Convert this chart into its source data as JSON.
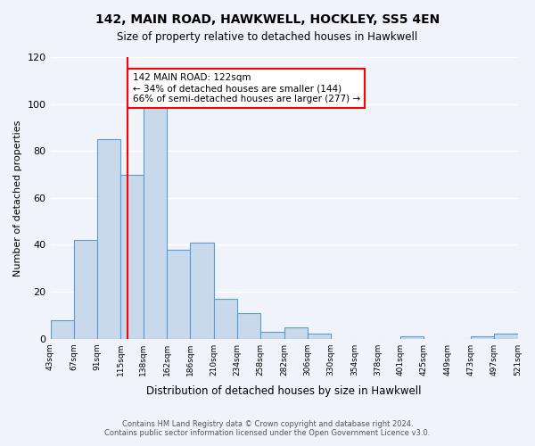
{
  "title": "142, MAIN ROAD, HAWKWELL, HOCKLEY, SS5 4EN",
  "subtitle": "Size of property relative to detached houses in Hawkwell",
  "xlabel": "Distribution of detached houses by size in Hawkwell",
  "ylabel": "Number of detached properties",
  "bar_edges": [
    43,
    67,
    91,
    115,
    138,
    162,
    186,
    210,
    234,
    258,
    282,
    306,
    330,
    354,
    378,
    401,
    425,
    449,
    473,
    497,
    521
  ],
  "bar_heights": [
    8,
    42,
    85,
    70,
    100,
    38,
    41,
    17,
    11,
    3,
    5,
    2,
    0,
    0,
    0,
    1,
    0,
    0,
    1,
    2
  ],
  "tick_labels": [
    "43sqm",
    "67sqm",
    "91sqm",
    "115sqm",
    "138sqm",
    "162sqm",
    "186sqm",
    "210sqm",
    "234sqm",
    "258sqm",
    "282sqm",
    "306sqm",
    "330sqm",
    "354sqm",
    "378sqm",
    "401sqm",
    "425sqm",
    "449sqm",
    "473sqm",
    "497sqm",
    "521sqm"
  ],
  "bar_color": "#c9d9ec",
  "bar_edge_color": "#5b9bd5",
  "red_line_x": 122,
  "annotation_box_text": "142 MAIN ROAD: 122sqm\n← 34% of detached houses are smaller (144)\n66% of semi-detached houses are larger (277) →",
  "ylim": [
    0,
    120
  ],
  "yticks": [
    0,
    20,
    40,
    60,
    80,
    100,
    120
  ],
  "footer_line1": "Contains HM Land Registry data © Crown copyright and database right 2024.",
  "footer_line2": "Contains public sector information licensed under the Open Government Licence v3.0.",
  "background_color": "#f0f4fa"
}
